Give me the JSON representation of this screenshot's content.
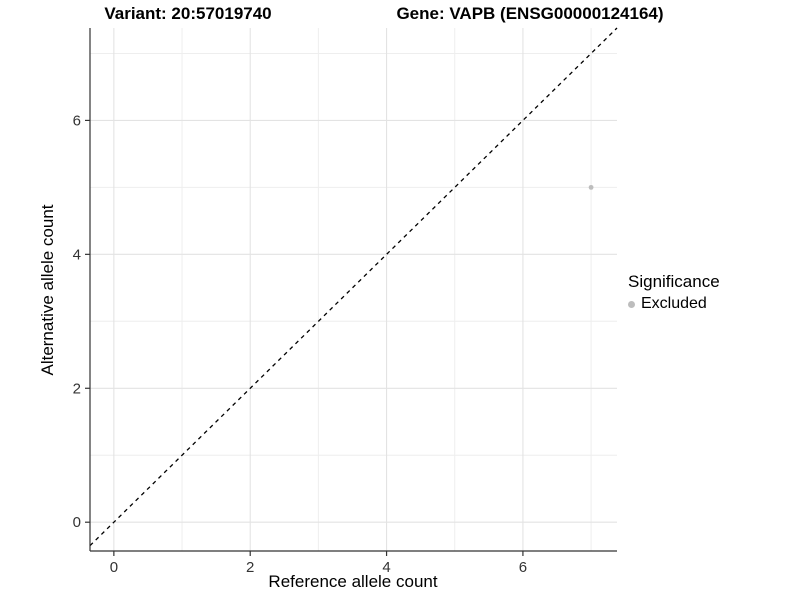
{
  "titles": {
    "variant": "Variant: 20:57019740",
    "gene": "Gene: VAPB (ENSG00000124164)"
  },
  "axes": {
    "x_label": "Reference allele count",
    "y_label": "Alternative allele count"
  },
  "legend": {
    "title": "Significance",
    "items": [
      {
        "label": "Excluded",
        "color": "#bdbdbd"
      }
    ]
  },
  "colors": {
    "point": "#bdbdbd",
    "grid_major": "#e3e3e3",
    "grid_minor": "#eeeeee",
    "axis": "#333333",
    "identity_line": "#000000",
    "background": "#ffffff"
  },
  "chart_data": {
    "type": "scatter",
    "title": "Variant: 20:57019740 | Gene: VAPB (ENSG00000124164)",
    "xlabel": "Reference allele count",
    "ylabel": "Alternative allele count",
    "xlim": [
      -0.35,
      7.38
    ],
    "ylim": [
      -0.43,
      7.38
    ],
    "x_ticks": [
      0,
      2,
      4,
      6
    ],
    "y_ticks": [
      0,
      2,
      4,
      6
    ],
    "x_minor": [
      1,
      3,
      5,
      7
    ],
    "y_minor": [
      1,
      3,
      5,
      7
    ],
    "grid": true,
    "legend_position": "right",
    "identity_line": {
      "slope": 1,
      "intercept": 0,
      "style": "dashed"
    },
    "series": [
      {
        "name": "Excluded",
        "color": "#bdbdbd",
        "points": [
          {
            "x": 7,
            "y": 5
          }
        ]
      }
    ]
  }
}
